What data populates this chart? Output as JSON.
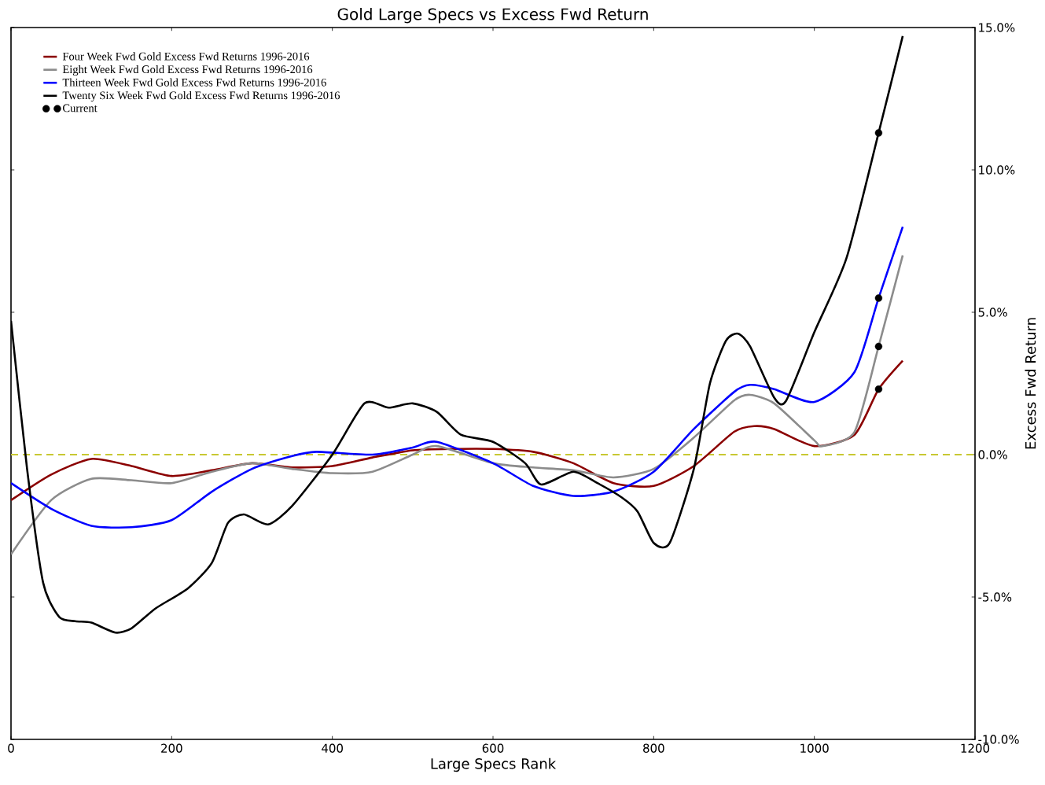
{
  "chart_data": {
    "type": "line",
    "title": "Gold Large Specs vs Excess Fwd Return",
    "xlabel": "Large Specs Rank",
    "ylabel": "Excess Fwd Return",
    "xlim": [
      0,
      1200
    ],
    "xticks": [
      0,
      200,
      400,
      600,
      800,
      1000,
      1200
    ],
    "ylim": [
      -10,
      15
    ],
    "yticks": [
      {
        "value": -10,
        "label": "-10.0%"
      },
      {
        "value": -5,
        "label": "-5.0%"
      },
      {
        "value": 0,
        "label": "0.0%"
      },
      {
        "value": 5,
        "label": "5.0%"
      },
      {
        "value": 10,
        "label": "10.0%"
      },
      {
        "value": 15,
        "label": "15.0%"
      }
    ],
    "grid": false,
    "legend": "top left",
    "line_style": "solid",
    "ref_lines": [
      {
        "axis": "y",
        "value": 0,
        "color": "#c8c832",
        "line_style": "dashed"
      }
    ],
    "series": [
      {
        "name": "Four Week Fwd Gold Excess Fwd Returns 1996-2016",
        "color": "#8b0000",
        "x": [
          0,
          50,
          100,
          150,
          200,
          250,
          300,
          350,
          400,
          450,
          500,
          550,
          600,
          650,
          700,
          750,
          800,
          850,
          900,
          925,
          950,
          1000,
          1050,
          1080,
          1110
        ],
        "values": [
          -1.6,
          -0.7,
          -0.15,
          -0.4,
          -0.75,
          -0.55,
          -0.3,
          -0.45,
          -0.4,
          -0.1,
          0.15,
          0.2,
          0.2,
          0.1,
          -0.3,
          -1.0,
          -1.1,
          -0.4,
          0.8,
          1.0,
          0.9,
          0.3,
          0.7,
          2.3,
          3.3
        ]
      },
      {
        "name": "Eight Week Fwd Gold Excess Fwd Returns 1996-2016",
        "color": "#8c8c8c",
        "x": [
          0,
          50,
          100,
          150,
          200,
          250,
          300,
          350,
          400,
          450,
          500,
          530,
          600,
          650,
          700,
          750,
          800,
          850,
          900,
          920,
          950,
          1000,
          1010,
          1050,
          1080,
          1110
        ],
        "values": [
          -3.5,
          -1.6,
          -0.85,
          -0.9,
          -1.0,
          -0.6,
          -0.3,
          -0.5,
          -0.65,
          -0.6,
          0.0,
          0.3,
          -0.3,
          -0.45,
          -0.55,
          -0.8,
          -0.5,
          0.6,
          1.9,
          2.1,
          1.8,
          0.5,
          0.3,
          0.8,
          3.8,
          7.0
        ]
      },
      {
        "name": "Thirteen Week Fwd Gold Excess Fwd Returns 1996-2016",
        "color": "#0000ff",
        "x": [
          0,
          50,
          100,
          150,
          200,
          250,
          300,
          350,
          380,
          450,
          500,
          530,
          600,
          650,
          700,
          750,
          800,
          850,
          900,
          920,
          950,
          1000,
          1050,
          1080,
          1110
        ],
        "values": [
          -1.0,
          -1.9,
          -2.5,
          -2.55,
          -2.3,
          -1.3,
          -0.5,
          -0.05,
          0.1,
          0.0,
          0.25,
          0.45,
          -0.3,
          -1.1,
          -1.45,
          -1.3,
          -0.6,
          0.9,
          2.2,
          2.45,
          2.3,
          1.85,
          2.9,
          5.5,
          8.0
        ]
      },
      {
        "name": "Twenty Six Week Fwd Gold Excess Fwd Returns 1996-2016",
        "color": "#000000",
        "x": [
          0,
          20,
          40,
          60,
          80,
          100,
          130,
          150,
          180,
          220,
          250,
          270,
          290,
          320,
          350,
          400,
          440,
          470,
          500,
          530,
          560,
          600,
          640,
          660,
          700,
          730,
          760,
          780,
          800,
          820,
          850,
          870,
          890,
          905,
          920,
          950,
          965,
          1000,
          1040,
          1080,
          1110
        ],
        "values": [
          4.7,
          -0.5,
          -4.5,
          -5.7,
          -5.85,
          -5.9,
          -6.25,
          -6.1,
          -5.4,
          -4.7,
          -3.8,
          -2.4,
          -2.1,
          -2.45,
          -1.8,
          0.0,
          1.8,
          1.65,
          1.8,
          1.5,
          0.7,
          0.45,
          -0.3,
          -1.05,
          -0.6,
          -1.0,
          -1.5,
          -2.0,
          -3.1,
          -3.1,
          -0.5,
          2.5,
          4.0,
          4.25,
          3.8,
          2.0,
          1.9,
          4.3,
          6.9,
          11.3,
          14.7
        ]
      },
      {
        "name": "Current",
        "type": "scatter",
        "marker": "circle",
        "color": "#000000",
        "x": [
          1080,
          1080,
          1080,
          1080
        ],
        "values": [
          2.3,
          3.8,
          5.5,
          11.3
        ]
      }
    ]
  }
}
